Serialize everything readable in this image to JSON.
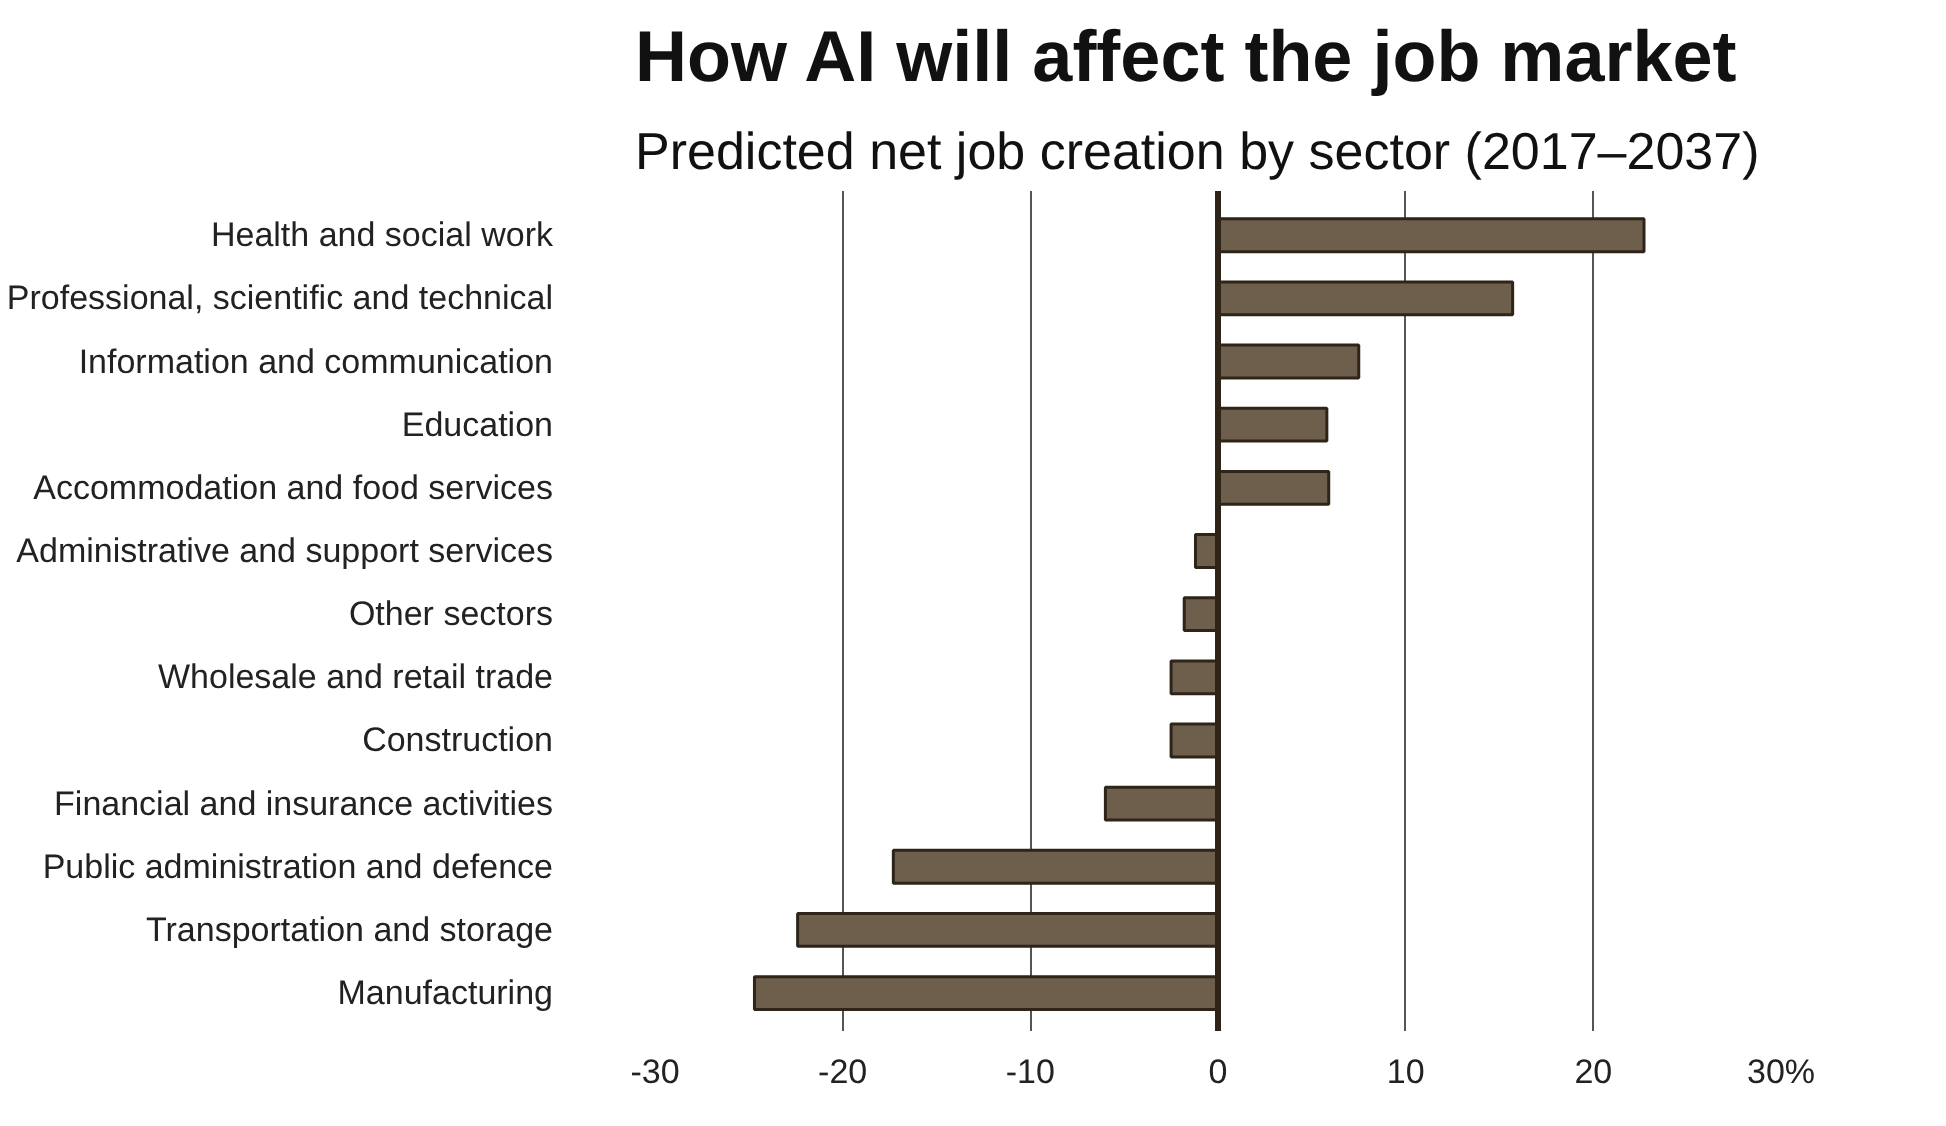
{
  "chart_data": {
    "type": "bar",
    "orientation": "horizontal",
    "title": "How AI will affect the job market",
    "subtitle": "Predicted net job creation by sector (2017–2037)",
    "categories": [
      "Health and social work",
      "Professional, scientific and technical",
      "Information and communication",
      "Education",
      "Accommodation and food services",
      "Administrative and support services",
      "Other sectors",
      "Wholesale and retail trade",
      "Construction",
      "Financial and insurance activities",
      "Public administration and defence",
      "Transportation and storage",
      "Manufacturing"
    ],
    "values": [
      22.7,
      15.7,
      7.5,
      5.8,
      5.9,
      -1.2,
      -1.8,
      -2.5,
      -2.5,
      -6,
      -17.3,
      -22.4,
      -24.7
    ],
    "color": "#6e5e4c",
    "xlim": [
      -30,
      30
    ],
    "xticks": [
      -30,
      -20,
      -10,
      0,
      10,
      20,
      {
        "value": 30,
        "label": "30%"
      }
    ],
    "grid": "x"
  }
}
